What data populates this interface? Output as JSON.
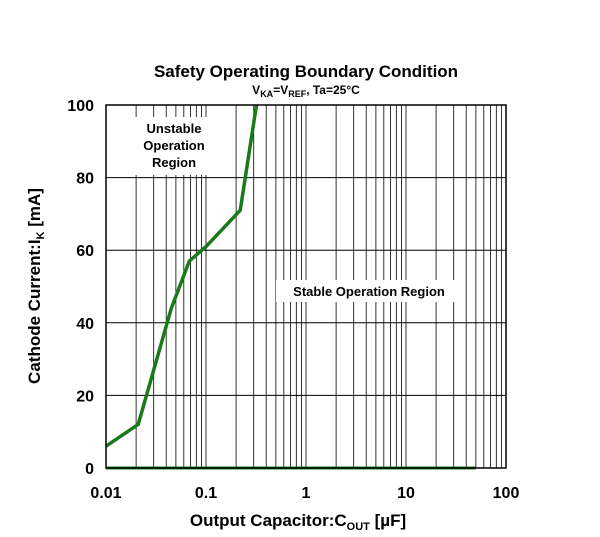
{
  "chart_data": {
    "type": "line",
    "title": "Safety Operating Boundary Condition",
    "subtitle": {
      "v": "V",
      "ka": "KA",
      "eq": "=V",
      "ref": "REF",
      "tail": ", Ta=25°C"
    },
    "xlabel": {
      "main": "Output Capacitor:C",
      "sub": "OUT",
      "tail": " [µF]"
    },
    "ylabel": {
      "main": "Cathode Current:I",
      "sub": "K",
      "tail": " [mA]"
    },
    "x_scale": "log",
    "xlim": [
      0.01,
      100
    ],
    "ylim": [
      0,
      100
    ],
    "x_ticks": [
      0.01,
      0.1,
      1,
      10,
      100
    ],
    "x_tick_labels": [
      "0.01",
      "0.1",
      "1",
      "10",
      "100"
    ],
    "y_ticks": [
      0,
      20,
      40,
      60,
      80,
      100
    ],
    "y_tick_labels": [
      "0",
      "20",
      "40",
      "60",
      "80",
      "100"
    ],
    "grid": true,
    "line_color": "#1a7a1a",
    "series": [
      {
        "x": [
          0.01,
          0.021,
          0.045,
          0.068,
          0.1,
          0.22,
          0.32
        ],
        "y": [
          6,
          12,
          44,
          57,
          61,
          71,
          100
        ]
      },
      {
        "x": [
          0.01,
          50
        ],
        "y": [
          0,
          0
        ]
      }
    ],
    "annotations": {
      "unstable": [
        "Unstable",
        "Operation",
        "Region"
      ],
      "stable": "Stable Operation Region"
    }
  }
}
